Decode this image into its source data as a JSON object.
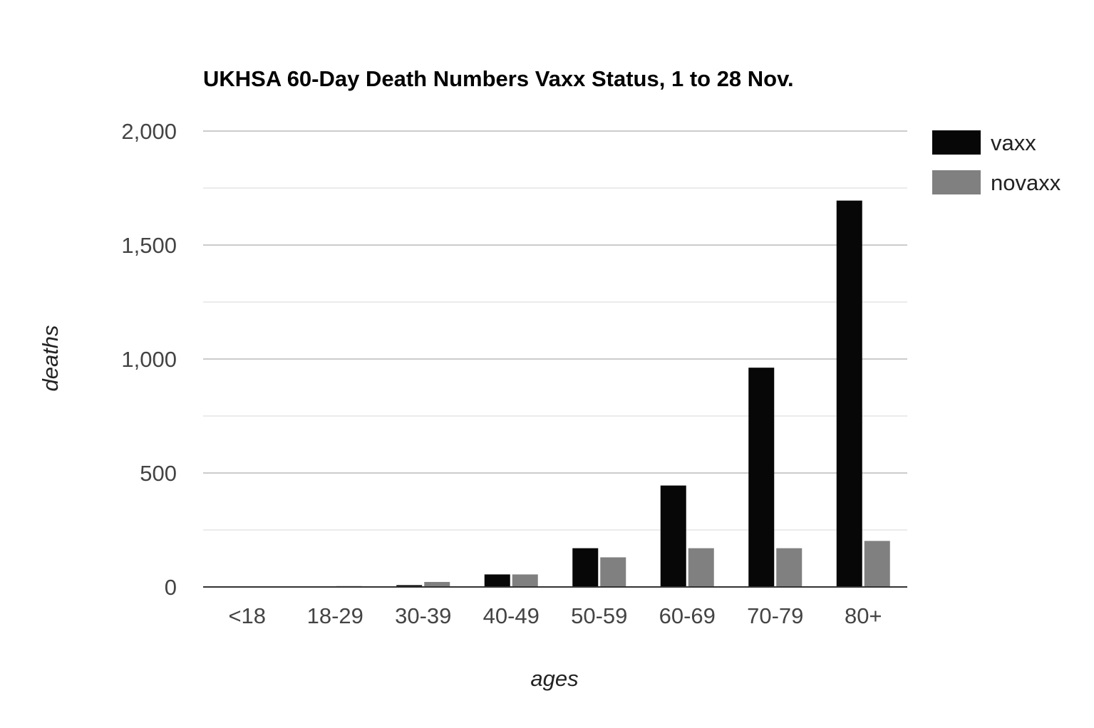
{
  "chart_data": {
    "type": "bar",
    "title": "UKHSA 60-Day Death Numbers Vaxx Status, 1 to 28 Nov.",
    "xlabel": "ages",
    "ylabel": "deaths",
    "categories": [
      "<18",
      "18-29",
      "30-39",
      "40-49",
      "50-59",
      "60-69",
      "70-79",
      "80+"
    ],
    "series": [
      {
        "name": "vaxx",
        "color": "#070707",
        "values": [
          0,
          0,
          8,
          55,
          170,
          445,
          962,
          1695
        ]
      },
      {
        "name": "novaxx",
        "color": "#808080",
        "values": [
          3,
          4,
          22,
          55,
          130,
          170,
          170,
          202
        ]
      }
    ],
    "ylim": [
      0,
      2000
    ],
    "yticks": [
      0,
      500,
      1000,
      1500,
      2000
    ],
    "ytick_labels": [
      "0",
      "500",
      "1,000",
      "1,500",
      "2,000"
    ],
    "minor_gridlines": [
      250,
      750,
      1250,
      1750
    ],
    "grid": true,
    "legend_position": "right"
  }
}
